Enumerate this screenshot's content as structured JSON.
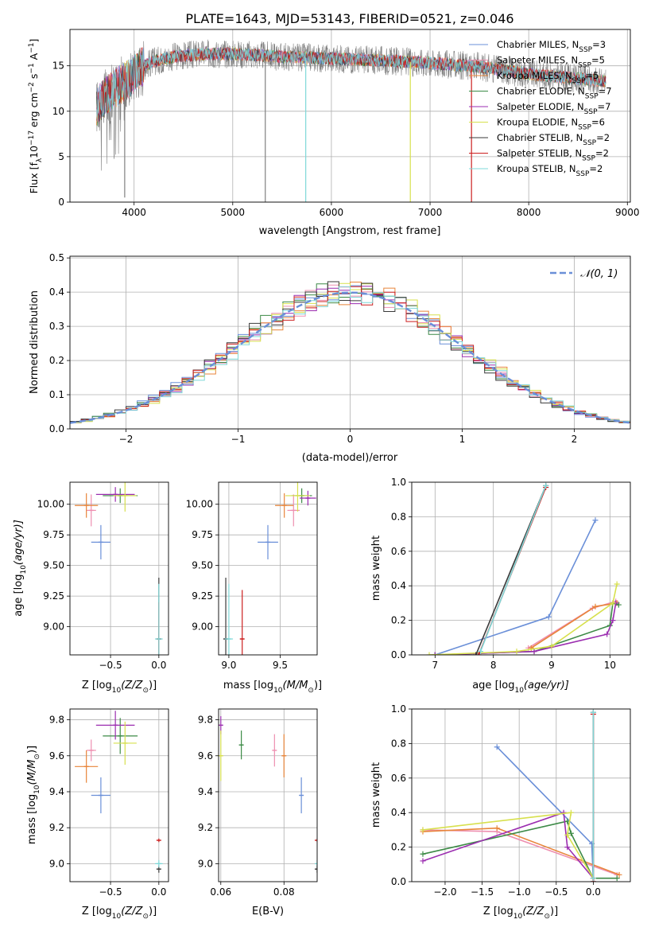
{
  "figure_title": "PLATE=1643, MJD=53143, FIBERID=0521, z=0.046",
  "colors": {
    "c_miles": "#6a8fd8",
    "s_miles": "#ee8fb0",
    "k_miles": "#e8853a",
    "c_elodie": "#3c8a46",
    "s_elodie": "#9b2db0",
    "k_elodie": "#d7e04d",
    "c_stelib": "#3a3a3a",
    "s_stelib": "#cc1f1f",
    "k_stelib": "#7fd8d8",
    "gray_spec": "#808080"
  },
  "legend_entries": [
    {
      "key": "c_miles",
      "pre": "Chabrier MILES, N",
      "sub": "SSP",
      "post": "=3"
    },
    {
      "key": "s_miles",
      "pre": "Salpeter MILES, N",
      "sub": "SSP",
      "post": "=5"
    },
    {
      "key": "k_miles",
      "pre": "Kroupa MILES, N",
      "sub": "SSP",
      "post": "=5"
    },
    {
      "key": "c_elodie",
      "pre": "Chabrier ELODIE, N",
      "sub": "SSP",
      "post": "=7"
    },
    {
      "key": "s_elodie",
      "pre": "Salpeter ELODIE, N",
      "sub": "SSP",
      "post": "=7"
    },
    {
      "key": "k_elodie",
      "pre": "Kroupa ELODIE, N",
      "sub": "SSP",
      "post": "=6"
    },
    {
      "key": "c_stelib",
      "pre": "Chabrier STELIB, N",
      "sub": "SSP",
      "post": "=2"
    },
    {
      "key": "s_stelib",
      "pre": "Salpeter STELIB, N",
      "sub": "SSP",
      "post": "=2"
    },
    {
      "key": "k_stelib",
      "pre": "Kroupa STELIB, N",
      "sub": "SSP",
      "post": "=2"
    }
  ],
  "chart_data": [
    {
      "id": "spectrum",
      "type": "line",
      "ylabel_pre": "Flux [f",
      "ylabel_sub": "λ",
      "ylabel_mid": "10",
      "ylabel_sup": "−17",
      "ylabel_unit": " erg cm",
      "ylabel_sup2": "−2",
      "ylabel_s": " s",
      "ylabel_sup3": "−1",
      "ylabel_A": " A",
      "ylabel_sup4": "−1",
      "ylabel_end": "]",
      "xlabel": "wavelength [Angstrom, rest frame]",
      "xlim": [
        3350,
        9030
      ],
      "ylim": [
        0,
        19
      ],
      "xticks": [
        4000,
        5000,
        6000,
        7000,
        8000,
        9000
      ],
      "yticks": [
        0,
        5,
        10,
        15
      ],
      "data_range": [
        3620,
        8780
      ],
      "continuum_points": [
        [
          3620,
          10.5
        ],
        [
          3700,
          11.5
        ],
        [
          3800,
          12.5
        ],
        [
          3900,
          13.2
        ],
        [
          4000,
          14.0
        ],
        [
          4100,
          15.0
        ],
        [
          4200,
          15.5
        ],
        [
          4400,
          16.0
        ],
        [
          4700,
          16.3
        ],
        [
          5000,
          16.3
        ],
        [
          5500,
          16.0
        ],
        [
          6000,
          15.8
        ],
        [
          6500,
          15.6
        ],
        [
          7000,
          15.3
        ],
        [
          7500,
          14.9
        ],
        [
          8000,
          14.1
        ],
        [
          8400,
          13.7
        ],
        [
          8780,
          13.3
        ]
      ],
      "drops": [
        {
          "x": 3905,
          "to": 0.5,
          "color": "gray_spec"
        },
        {
          "x": 5330,
          "to": 0,
          "color": "gray_spec"
        },
        {
          "x": 5740,
          "to": 0,
          "color": "k_stelib"
        },
        {
          "x": 6800,
          "to": 0,
          "color": "k_elodie"
        },
        {
          "x": 7420,
          "to": 0,
          "color": "s_stelib"
        }
      ]
    },
    {
      "id": "residuals",
      "type": "step",
      "ylabel": "Normed distribution",
      "xlabel": "(data-model)/error",
      "xlim": [
        -2.5,
        2.5
      ],
      "ylim": [
        0,
        0.505
      ],
      "xticks": [
        -2,
        -1,
        0,
        1,
        2
      ],
      "yticks": [
        0,
        0.1,
        0.2,
        0.3,
        0.4,
        0.5
      ],
      "bin_width": 0.1,
      "gaussian_label": "𝒩(0, 1)",
      "gaussian_color": "#6a8fd8"
    },
    {
      "id": "age_vs_z",
      "type": "scatter",
      "xlabel_pre": "Z [log",
      "xlabel_sub": "10",
      "xlabel_post": "(Z/Z",
      "xlabel_sun": "⊙",
      "xlabel_end": ")]",
      "ylabel_pre": "age  [log",
      "ylabel_sub": "10",
      "ylabel_post": "(age/yr)]",
      "xlim": [
        -0.92,
        0.1
      ],
      "ylim": [
        8.77,
        10.18
      ],
      "xticks": [
        -0.5,
        0.0
      ],
      "yticks": [
        9.0,
        9.25,
        9.5,
        9.75,
        10.0
      ],
      "points": [
        {
          "key": "c_miles",
          "x": -0.6,
          "xerr": 0.1,
          "y": 9.69,
          "yerr": 0.14
        },
        {
          "key": "s_miles",
          "x": -0.7,
          "xerr": 0.05,
          "y": 9.95,
          "yerr": 0.13
        },
        {
          "key": "k_miles",
          "x": -0.75,
          "xerr": 0.12,
          "y": 9.99,
          "yerr": 0.1
        },
        {
          "key": "c_elodie",
          "x": -0.4,
          "xerr": 0.18,
          "y": 10.07,
          "yerr": 0.06
        },
        {
          "key": "s_elodie",
          "x": -0.45,
          "xerr": 0.2,
          "y": 10.08,
          "yerr": 0.06
        },
        {
          "key": "k_elodie",
          "x": -0.35,
          "xerr": 0.12,
          "y": 10.07,
          "yerr": 0.13
        },
        {
          "key": "c_stelib",
          "x": 0.0,
          "xerr": 0.005,
          "y": 8.9,
          "yerr": 0.5
        },
        {
          "key": "s_stelib",
          "x": 0.0,
          "xerr": 0.005,
          "y": 8.9,
          "yerr": 0.3
        },
        {
          "key": "k_stelib",
          "x": 0.0,
          "xerr": 0.04,
          "y": 8.9,
          "yerr": 0.45
        }
      ]
    },
    {
      "id": "age_vs_mass",
      "type": "scatter",
      "xlabel_pre": "mass [log",
      "xlabel_sub": "10",
      "xlabel_post": "(M/M",
      "xlabel_sun": "⊙",
      "xlabel_end": ")]",
      "xlim": [
        8.9,
        9.86
      ],
      "ylim": [
        8.77,
        10.18
      ],
      "xticks": [
        9.0,
        9.5
      ],
      "yticks": [
        9.0,
        9.25,
        9.5,
        9.75,
        10.0
      ],
      "points": [
        {
          "key": "c_miles",
          "x": 9.38,
          "xerr": 0.1,
          "y": 9.69,
          "yerr": 0.14
        },
        {
          "key": "s_miles",
          "x": 9.63,
          "xerr": 0.06,
          "y": 9.95,
          "yerr": 0.13
        },
        {
          "key": "k_miles",
          "x": 9.54,
          "xerr": 0.09,
          "y": 9.99,
          "yerr": 0.1
        },
        {
          "key": "c_elodie",
          "x": 9.71,
          "xerr": 0.1,
          "y": 10.07,
          "yerr": 0.06
        },
        {
          "key": "s_elodie",
          "x": 9.77,
          "xerr": 0.08,
          "y": 10.05,
          "yerr": 0.06
        },
        {
          "key": "k_elodie",
          "x": 9.67,
          "xerr": 0.12,
          "y": 10.07,
          "yerr": 0.13
        },
        {
          "key": "c_stelib",
          "x": 8.97,
          "xerr": 0.02,
          "y": 8.9,
          "yerr": 0.5
        },
        {
          "key": "s_stelib",
          "x": 9.13,
          "xerr": 0.02,
          "y": 8.9,
          "yerr": 0.4
        },
        {
          "key": "k_stelib",
          "x": 9.0,
          "xerr": 0.04,
          "y": 8.9,
          "yerr": 0.45
        }
      ]
    },
    {
      "id": "weight_vs_age",
      "type": "line",
      "xlabel_pre": "age  [log",
      "xlabel_sub": "10",
      "xlabel_post": "(age/yr)]",
      "ylabel": "mass weight",
      "xlim": [
        6.6,
        10.35
      ],
      "ylim": [
        0,
        1
      ],
      "xticks": [
        7,
        8,
        9,
        10
      ],
      "yticks": [
        0.0,
        0.2,
        0.4,
        0.6,
        0.8,
        1.0
      ],
      "series": [
        {
          "key": "c_miles",
          "x": [
            7.0,
            8.95,
            9.75
          ],
          "y": [
            0.0,
            0.22,
            0.78
          ]
        },
        {
          "key": "s_miles",
          "x": [
            8.6,
            9.7,
            10.1
          ],
          "y": [
            0.04,
            0.27,
            0.31
          ]
        },
        {
          "key": "k_miles",
          "x": [
            8.65,
            9.75,
            10.12
          ],
          "y": [
            0.04,
            0.28,
            0.3
          ]
        },
        {
          "key": "c_elodie",
          "x": [
            7.0,
            8.7,
            10.0,
            10.05,
            10.15
          ],
          "y": [
            0.0,
            0.02,
            0.17,
            0.3,
            0.29
          ]
        },
        {
          "key": "s_elodie",
          "x": [
            7.0,
            8.7,
            9.95,
            10.05,
            10.1
          ],
          "y": [
            0.0,
            0.02,
            0.12,
            0.2,
            0.3
          ]
        },
        {
          "key": "k_elodie",
          "x": [
            6.9,
            8.4,
            9.0,
            10.05,
            10.12
          ],
          "y": [
            0.0,
            0.02,
            0.05,
            0.3,
            0.41
          ]
        },
        {
          "key": "c_stelib",
          "x": [
            7.7,
            8.9
          ],
          "y": [
            0.0,
            0.98
          ]
        },
        {
          "key": "s_stelib",
          "x": [
            7.75,
            8.9
          ],
          "y": [
            0.0,
            0.97
          ]
        },
        {
          "key": "k_stelib",
          "x": [
            7.78,
            8.9
          ],
          "y": [
            0.02,
            0.98
          ]
        }
      ]
    },
    {
      "id": "mass_vs_z",
      "type": "scatter",
      "xlabel_pre": "Z [log",
      "xlabel_sub": "10",
      "xlabel_post": "(Z/Z",
      "xlabel_sun": "⊙",
      "xlabel_end": ")]",
      "ylabel_pre": "mass [log",
      "ylabel_sub": "10",
      "ylabel_post": "(M/M",
      "ylabel_sun": "⊙",
      "ylabel_end": ")]",
      "xlim": [
        -0.92,
        0.1
      ],
      "ylim": [
        8.9,
        9.86
      ],
      "xticks": [
        -0.5,
        0.0
      ],
      "yticks": [
        9.0,
        9.2,
        9.4,
        9.6,
        9.8
      ],
      "points": [
        {
          "key": "c_miles",
          "x": -0.6,
          "xerr": 0.1,
          "y": 9.38,
          "yerr": 0.1
        },
        {
          "key": "s_miles",
          "x": -0.7,
          "xerr": 0.05,
          "y": 9.63,
          "yerr": 0.06
        },
        {
          "key": "k_miles",
          "x": -0.75,
          "xerr": 0.12,
          "y": 9.54,
          "yerr": 0.09
        },
        {
          "key": "c_elodie",
          "x": -0.4,
          "xerr": 0.18,
          "y": 9.71,
          "yerr": 0.1
        },
        {
          "key": "s_elodie",
          "x": -0.45,
          "xerr": 0.2,
          "y": 9.77,
          "yerr": 0.08
        },
        {
          "key": "k_elodie",
          "x": -0.35,
          "xerr": 0.12,
          "y": 9.67,
          "yerr": 0.12
        },
        {
          "key": "c_stelib",
          "x": 0.0,
          "xerr": 0.005,
          "y": 8.97,
          "yerr": 0.02
        },
        {
          "key": "s_stelib",
          "x": 0.0,
          "xerr": 0.01,
          "y": 9.13,
          "yerr": 0.01
        },
        {
          "key": "k_stelib",
          "x": 0.0,
          "xerr": 0.04,
          "y": 9.0,
          "yerr": 0.02
        }
      ]
    },
    {
      "id": "mass_vs_ebv",
      "type": "scatter",
      "xlabel": "E(B-V)",
      "xlim": [
        0.0593,
        0.0905
      ],
      "ylim": [
        8.9,
        9.86
      ],
      "xticks": [
        0.06,
        0.08
      ],
      "xtick_labels": [
        "0.06",
        "0.08"
      ],
      "yticks": [
        9.0,
        9.2,
        9.4,
        9.6,
        9.8
      ],
      "points": [
        {
          "key": "c_miles",
          "x": 0.0855,
          "xerr": 0.0,
          "y": 9.38,
          "yerr": 0.1
        },
        {
          "key": "s_miles",
          "x": 0.077,
          "xerr": 0.0,
          "y": 9.63,
          "yerr": 0.09
        },
        {
          "key": "k_miles",
          "x": 0.08,
          "xerr": 0.0,
          "y": 9.6,
          "yerr": 0.12
        },
        {
          "key": "c_elodie",
          "x": 0.0665,
          "xerr": 0.0,
          "y": 9.66,
          "yerr": 0.08
        },
        {
          "key": "s_elodie",
          "x": 0.06,
          "xerr": 0.0,
          "y": 9.77,
          "yerr": 0.05
        },
        {
          "key": "k_elodie",
          "x": 0.06,
          "xerr": 0.0,
          "y": 9.6,
          "yerr": 0.14
        },
        {
          "key": "c_stelib",
          "x": 0.0905,
          "xerr": 0.0,
          "y": 8.97,
          "yerr": 0.02
        },
        {
          "key": "s_stelib",
          "x": 0.0905,
          "xerr": 0.0,
          "y": 9.13,
          "yerr": 0.01
        },
        {
          "key": "k_stelib",
          "x": 0.0905,
          "xerr": 0.0,
          "y": 9.0,
          "yerr": 0.02
        }
      ]
    },
    {
      "id": "weight_vs_z",
      "type": "line",
      "xlabel_pre": "Z [log",
      "xlabel_sub": "10",
      "xlabel_post": "(Z/Z",
      "xlabel_sun": "⊙",
      "xlabel_end": ")]",
      "ylabel": "mass weight",
      "xlim": [
        -2.45,
        0.5
      ],
      "ylim": [
        0,
        1
      ],
      "xticks": [
        -2.0,
        -1.5,
        -1.0,
        -0.5,
        0.0
      ],
      "xtick_labels": [
        "−2.0",
        "−1.5",
        "−1.0",
        "−0.5",
        "0.0"
      ],
      "yticks": [
        0.0,
        0.2,
        0.4,
        0.6,
        0.8,
        1.0
      ],
      "series": [
        {
          "key": "c_miles",
          "x": [
            -1.3,
            -0.02,
            0.0
          ],
          "y": [
            0.78,
            0.22,
            0.0
          ]
        },
        {
          "key": "s_miles",
          "x": [
            -2.3,
            -1.3,
            0.32
          ],
          "y": [
            0.3,
            0.29,
            0.04
          ]
        },
        {
          "key": "k_miles",
          "x": [
            -2.3,
            -1.3,
            0.35
          ],
          "y": [
            0.29,
            0.31,
            0.04
          ]
        },
        {
          "key": "c_elodie",
          "x": [
            -2.3,
            -0.35,
            -0.3,
            0.0,
            0.32
          ],
          "y": [
            0.16,
            0.35,
            0.28,
            0.02,
            0.02
          ]
        },
        {
          "key": "s_elodie",
          "x": [
            -2.3,
            -0.4,
            -0.35,
            0.0
          ],
          "y": [
            0.12,
            0.4,
            0.2,
            0.02
          ]
        },
        {
          "key": "k_elodie",
          "x": [
            -2.3,
            -0.3,
            -0.35,
            0.0
          ],
          "y": [
            0.3,
            0.4,
            0.27,
            0.02
          ]
        },
        {
          "key": "c_stelib",
          "x": [
            0.0,
            0.0
          ],
          "y": [
            0.0,
            0.98
          ]
        },
        {
          "key": "s_stelib",
          "x": [
            0.0,
            0.0
          ],
          "y": [
            0.0,
            0.97
          ]
        },
        {
          "key": "k_stelib",
          "x": [
            0.0,
            0.0
          ],
          "y": [
            0.02,
            0.98
          ]
        }
      ]
    }
  ]
}
